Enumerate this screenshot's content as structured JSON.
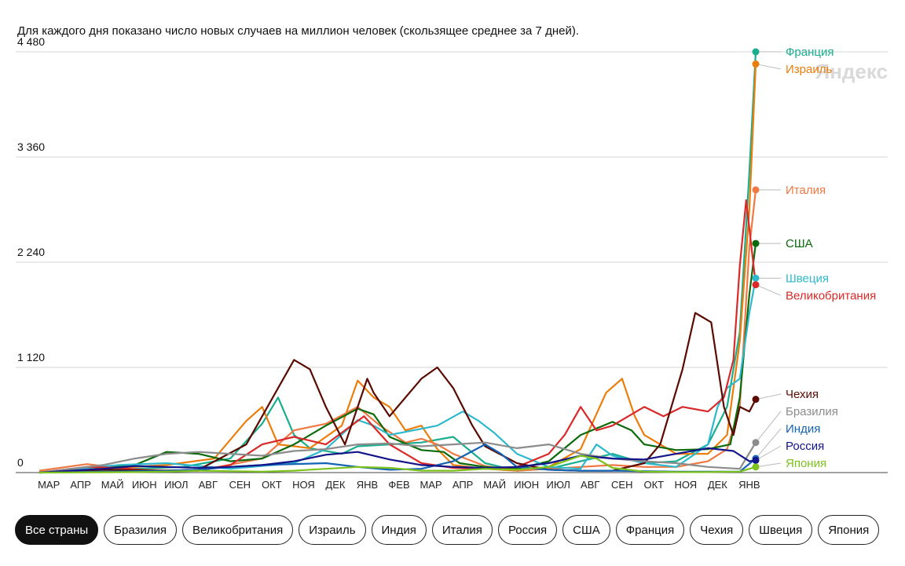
{
  "subtitle": "Для каждого дня показано число новых случаев на миллион человек (скользящее среднее за 7 дней).",
  "watermark": "Яндекс",
  "filters": [
    {
      "label": "Все страны",
      "active": true
    },
    {
      "label": "Бразилия",
      "active": false
    },
    {
      "label": "Великобритания",
      "active": false
    },
    {
      "label": "Израиль",
      "active": false
    },
    {
      "label": "Индия",
      "active": false
    },
    {
      "label": "Италия",
      "active": false
    },
    {
      "label": "Россия",
      "active": false
    },
    {
      "label": "США",
      "active": false
    },
    {
      "label": "Франция",
      "active": false
    },
    {
      "label": "Чехия",
      "active": false
    },
    {
      "label": "Швеция",
      "active": false
    },
    {
      "label": "Япония",
      "active": false
    }
  ],
  "chart_data": {
    "type": "line",
    "title": "",
    "xlabel": "",
    "ylabel": "",
    "grid": true,
    "ylim": [
      0,
      4480
    ],
    "y_ticks": [
      0,
      1120,
      2240,
      3360,
      4480
    ],
    "y_tick_labels": [
      "0",
      "1 120",
      "2 240",
      "3 360",
      "4 480"
    ],
    "x_range": [
      0,
      22.5
    ],
    "x_ticks": [
      0.3,
      1.3,
      2.3,
      3.3,
      4.3,
      5.3,
      6.3,
      7.3,
      8.3,
      9.3,
      10.3,
      11.3,
      12.3,
      13.3,
      14.3,
      15.3,
      16.3,
      17.3,
      18.3,
      19.3,
      20.3,
      21.3,
      22.3
    ],
    "x_tick_labels": [
      "МАР",
      "АПР",
      "МАЙ",
      "ИЮН",
      "ИЮЛ",
      "АВГ",
      "СЕН",
      "ОКТ",
      "НОЯ",
      "ДЕК",
      "ЯНВ",
      "ФЕВ",
      "МАР",
      "АПР",
      "МАЙ",
      "ИЮН",
      "ИЮЛ",
      "АВГ",
      "СЕН",
      "ОКТ",
      "НОЯ",
      "ДЕК",
      "ЯНВ"
    ],
    "series": [
      {
        "name": "Франция",
        "color": "#1aae8f",
        "last": 4480,
        "points": [
          [
            0,
            0
          ],
          [
            1.5,
            20
          ],
          [
            3,
            40
          ],
          [
            4.5,
            60
          ],
          [
            6,
            150
          ],
          [
            7,
            520
          ],
          [
            7.5,
            800
          ],
          [
            8,
            400
          ],
          [
            8.5,
            260
          ],
          [
            9.5,
            200
          ],
          [
            10,
            280
          ],
          [
            11,
            300
          ],
          [
            12,
            320
          ],
          [
            13,
            380
          ],
          [
            14,
            100
          ],
          [
            15,
            20
          ],
          [
            16,
            40
          ],
          [
            17,
            120
          ],
          [
            18,
            200
          ],
          [
            19,
            100
          ],
          [
            20,
            120
          ],
          [
            21,
            300
          ],
          [
            21.6,
            700
          ],
          [
            22,
            1500
          ],
          [
            22.3,
            3200
          ],
          [
            22.5,
            4480
          ]
        ]
      },
      {
        "name": "Израиль",
        "color": "#ec7d0b",
        "last": 4350,
        "points": [
          [
            0,
            0
          ],
          [
            4,
            80
          ],
          [
            5.5,
            150
          ],
          [
            6.5,
            550
          ],
          [
            7,
            700
          ],
          [
            7.5,
            300
          ],
          [
            8.5,
            260
          ],
          [
            9.5,
            500
          ],
          [
            10,
            980
          ],
          [
            10.5,
            800
          ],
          [
            11,
            700
          ],
          [
            11.5,
            450
          ],
          [
            12,
            500
          ],
          [
            12.5,
            250
          ],
          [
            13,
            80
          ],
          [
            14,
            40
          ],
          [
            15,
            20
          ],
          [
            16,
            60
          ],
          [
            17,
            250
          ],
          [
            17.8,
            850
          ],
          [
            18.3,
            1000
          ],
          [
            18.7,
            600
          ],
          [
            19,
            400
          ],
          [
            20,
            200
          ],
          [
            21,
            200
          ],
          [
            21.6,
            400
          ],
          [
            22,
            1400
          ],
          [
            22.3,
            2800
          ],
          [
            22.5,
            4350
          ]
        ]
      },
      {
        "name": "Италия",
        "color": "#f07842",
        "last": 3010,
        "points": [
          [
            0,
            20
          ],
          [
            1.5,
            90
          ],
          [
            3,
            30
          ],
          [
            5,
            20
          ],
          [
            7,
            150
          ],
          [
            8,
            450
          ],
          [
            9,
            520
          ],
          [
            10,
            700
          ],
          [
            10.7,
            500
          ],
          [
            11.5,
            320
          ],
          [
            12,
            360
          ],
          [
            12.5,
            300
          ],
          [
            13,
            200
          ],
          [
            14,
            70
          ],
          [
            15,
            20
          ],
          [
            16,
            40
          ],
          [
            17,
            60
          ],
          [
            18,
            80
          ],
          [
            19,
            60
          ],
          [
            20,
            60
          ],
          [
            21,
            120
          ],
          [
            21.6,
            250
          ],
          [
            22,
            700
          ],
          [
            22.3,
            2400
          ],
          [
            22.5,
            3010
          ]
        ]
      },
      {
        "name": "США",
        "color": "#0b6b0b",
        "last": 2440,
        "points": [
          [
            0,
            0
          ],
          [
            1,
            40
          ],
          [
            2,
            60
          ],
          [
            3,
            80
          ],
          [
            4,
            220
          ],
          [
            5,
            200
          ],
          [
            6,
            120
          ],
          [
            7,
            150
          ],
          [
            8,
            300
          ],
          [
            9,
            500
          ],
          [
            10,
            680
          ],
          [
            10.5,
            620
          ],
          [
            11,
            380
          ],
          [
            12,
            240
          ],
          [
            12.7,
            220
          ],
          [
            13.2,
            100
          ],
          [
            14,
            60
          ],
          [
            15,
            40
          ],
          [
            16,
            120
          ],
          [
            17,
            400
          ],
          [
            18,
            540
          ],
          [
            18.6,
            450
          ],
          [
            19,
            300
          ],
          [
            20,
            240
          ],
          [
            21,
            250
          ],
          [
            21.7,
            300
          ],
          [
            22,
            800
          ],
          [
            22.3,
            1900
          ],
          [
            22.5,
            2440
          ]
        ]
      },
      {
        "name": "Швеция",
        "color": "#2eb8ce",
        "last": 2070,
        "points": [
          [
            0,
            0
          ],
          [
            1.5,
            50
          ],
          [
            2.5,
            80
          ],
          [
            4,
            100
          ],
          [
            6,
            40
          ],
          [
            8,
            100
          ],
          [
            9,
            250
          ],
          [
            10,
            560
          ],
          [
            10.5,
            500
          ],
          [
            11,
            400
          ],
          [
            12.5,
            500
          ],
          [
            13.3,
            650
          ],
          [
            13.8,
            550
          ],
          [
            14.3,
            420
          ],
          [
            15,
            200
          ],
          [
            16,
            60
          ],
          [
            17,
            40
          ],
          [
            17.5,
            300
          ],
          [
            18,
            180
          ],
          [
            19,
            100
          ],
          [
            20,
            60
          ],
          [
            20.6,
            200
          ],
          [
            21,
            300
          ],
          [
            21.3,
            700
          ],
          [
            21.6,
            900
          ],
          [
            22,
            1000
          ],
          [
            22.3,
            1700
          ],
          [
            22.5,
            2070
          ]
        ]
      },
      {
        "name": "Великобритания",
        "color": "#d92929",
        "last": 2000,
        "points": [
          [
            0,
            0
          ],
          [
            1.5,
            60
          ],
          [
            2.5,
            50
          ],
          [
            3.5,
            20
          ],
          [
            5,
            20
          ],
          [
            6,
            80
          ],
          [
            7,
            300
          ],
          [
            8,
            380
          ],
          [
            9,
            300
          ],
          [
            10.2,
            600
          ],
          [
            11,
            300
          ],
          [
            12,
            100
          ],
          [
            13,
            50
          ],
          [
            14,
            40
          ],
          [
            15,
            60
          ],
          [
            16,
            200
          ],
          [
            16.5,
            400
          ],
          [
            17,
            700
          ],
          [
            17.5,
            450
          ],
          [
            18,
            500
          ],
          [
            19,
            700
          ],
          [
            19.6,
            600
          ],
          [
            20.2,
            700
          ],
          [
            21,
            650
          ],
          [
            21.5,
            800
          ],
          [
            21.8,
            1200
          ],
          [
            22,
            2200
          ],
          [
            22.2,
            2900
          ],
          [
            22.5,
            2000
          ]
        ]
      },
      {
        "name": "Чехия",
        "color": "#5a0a00",
        "last": 780,
        "points": [
          [
            0,
            0
          ],
          [
            2,
            30
          ],
          [
            4,
            20
          ],
          [
            5,
            30
          ],
          [
            6.5,
            300
          ],
          [
            7.5,
            900
          ],
          [
            8,
            1200
          ],
          [
            8.5,
            1100
          ],
          [
            9,
            700
          ],
          [
            9.6,
            300
          ],
          [
            10,
            700
          ],
          [
            10.3,
            1000
          ],
          [
            10.5,
            850
          ],
          [
            11,
            600
          ],
          [
            12,
            1000
          ],
          [
            12.5,
            1120
          ],
          [
            13,
            900
          ],
          [
            13.6,
            500
          ],
          [
            14,
            280
          ],
          [
            15,
            100
          ],
          [
            16,
            30
          ],
          [
            17,
            20
          ],
          [
            18,
            20
          ],
          [
            19,
            100
          ],
          [
            19.5,
            300
          ],
          [
            20.2,
            1100
          ],
          [
            20.6,
            1700
          ],
          [
            21.1,
            1600
          ],
          [
            21.5,
            700
          ],
          [
            21.8,
            400
          ],
          [
            22,
            700
          ],
          [
            22.3,
            650
          ],
          [
            22.5,
            780
          ]
        ]
      },
      {
        "name": "Бразилия",
        "color": "#8c8c8c",
        "last": 320,
        "points": [
          [
            0,
            0
          ],
          [
            2,
            80
          ],
          [
            3,
            150
          ],
          [
            4,
            200
          ],
          [
            5,
            220
          ],
          [
            6,
            200
          ],
          [
            7,
            180
          ],
          [
            8,
            230
          ],
          [
            9,
            250
          ],
          [
            10,
            300
          ],
          [
            11,
            310
          ],
          [
            12,
            280
          ],
          [
            13,
            300
          ],
          [
            14,
            320
          ],
          [
            15,
            260
          ],
          [
            16,
            300
          ],
          [
            17,
            200
          ],
          [
            18,
            150
          ],
          [
            19,
            120
          ],
          [
            20,
            100
          ],
          [
            21,
            60
          ],
          [
            22,
            40
          ],
          [
            22.5,
            320
          ]
        ]
      },
      {
        "name": "Индия",
        "color": "#1463b4",
        "last": 150,
        "points": [
          [
            0,
            0
          ],
          [
            2,
            10
          ],
          [
            4,
            20
          ],
          [
            5,
            30
          ],
          [
            6,
            60
          ],
          [
            7,
            80
          ],
          [
            8,
            90
          ],
          [
            9,
            100
          ],
          [
            10,
            60
          ],
          [
            11,
            30
          ],
          [
            12,
            40
          ],
          [
            13,
            120
          ],
          [
            14,
            300
          ],
          [
            14.5,
            200
          ],
          [
            15,
            60
          ],
          [
            16,
            30
          ],
          [
            17,
            20
          ],
          [
            18,
            20
          ],
          [
            19,
            15
          ],
          [
            20,
            10
          ],
          [
            21,
            10
          ],
          [
            22,
            10
          ],
          [
            22.5,
            150
          ]
        ]
      },
      {
        "name": "Россия",
        "color": "#14148a",
        "last": 130,
        "points": [
          [
            0,
            0
          ],
          [
            2,
            40
          ],
          [
            3,
            70
          ],
          [
            4,
            60
          ],
          [
            5,
            50
          ],
          [
            6,
            60
          ],
          [
            7,
            80
          ],
          [
            8,
            120
          ],
          [
            9,
            190
          ],
          [
            10,
            220
          ],
          [
            11,
            140
          ],
          [
            12,
            80
          ],
          [
            13,
            60
          ],
          [
            14,
            50
          ],
          [
            15,
            60
          ],
          [
            16,
            100
          ],
          [
            17,
            180
          ],
          [
            18,
            150
          ],
          [
            19,
            140
          ],
          [
            20,
            200
          ],
          [
            21,
            260
          ],
          [
            21.8,
            230
          ],
          [
            22.3,
            120
          ],
          [
            22.5,
            130
          ]
        ]
      },
      {
        "name": "Япония",
        "color": "#7cc21c",
        "last": 60,
        "points": [
          [
            0,
            0
          ],
          [
            3,
            5
          ],
          [
            4,
            10
          ],
          [
            5,
            20
          ],
          [
            6,
            15
          ],
          [
            7,
            10
          ],
          [
            8,
            20
          ],
          [
            9,
            40
          ],
          [
            10,
            60
          ],
          [
            11,
            50
          ],
          [
            12,
            20
          ],
          [
            13,
            20
          ],
          [
            14,
            40
          ],
          [
            15,
            30
          ],
          [
            16,
            60
          ],
          [
            17,
            180
          ],
          [
            17.5,
            150
          ],
          [
            18,
            50
          ],
          [
            19,
            10
          ],
          [
            20,
            5
          ],
          [
            21,
            5
          ],
          [
            22,
            10
          ],
          [
            22.5,
            60
          ]
        ]
      }
    ]
  }
}
